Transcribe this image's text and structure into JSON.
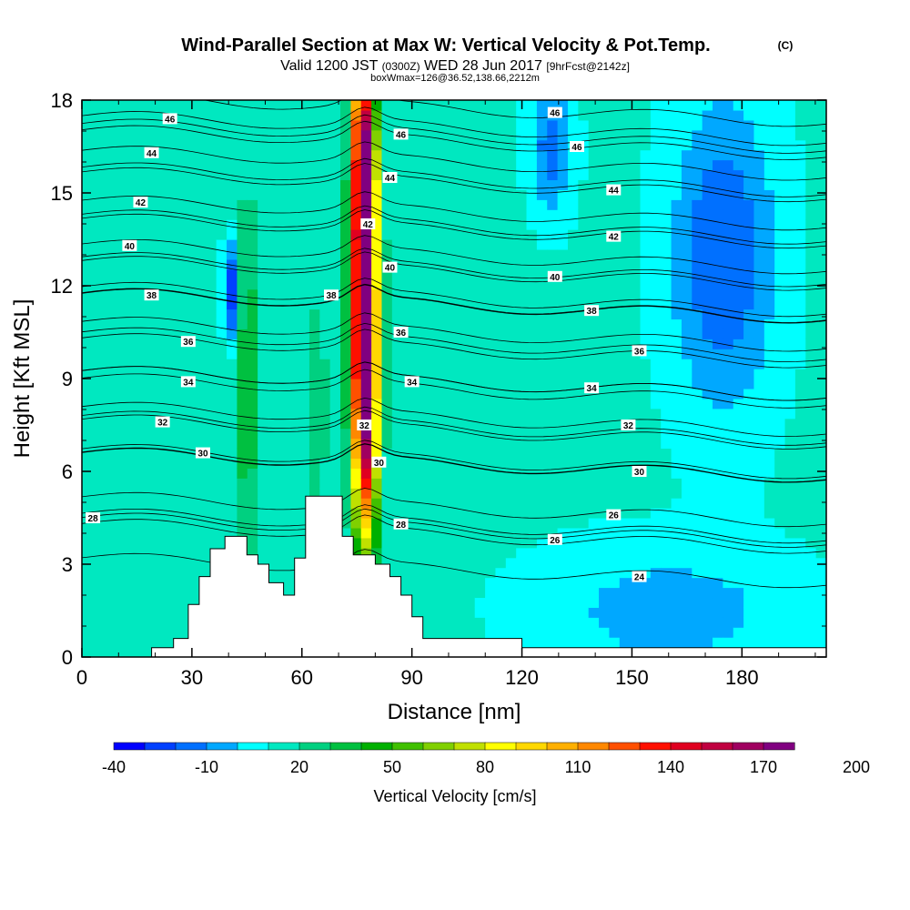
{
  "chart_data": {
    "type": "heatmap",
    "title": "Wind-Parallel Section at Max W: Vertical Velocity & Pot.Temp.",
    "title_mark": "(C)",
    "subtitle_prefix": "Valid 1200 JST",
    "subtitle_utc": "(0300Z)",
    "subtitle_date": "WED 28 Jun 2017",
    "subtitle_fcst": "[9hrFcst@2142z]",
    "subtitle2": "boxWmax=126@36.52,138.66,2212m",
    "xlabel": "Distance [nm]",
    "ylabel": "Height [Kft MSL]",
    "xlim": [
      0,
      203
    ],
    "ylim": [
      0,
      18
    ],
    "xticks": [
      "0",
      "30",
      "60",
      "90",
      "120",
      "150",
      "180"
    ],
    "yticks": [
      "0",
      "3",
      "6",
      "9",
      "12",
      "15",
      "18"
    ],
    "colorbar": {
      "label": "Vertical Velocity [cm/s]",
      "tick_labels": [
        "-40",
        "-10",
        "20",
        "50",
        "80",
        "110",
        "140",
        "170",
        "200"
      ],
      "colors": [
        "#0000ff",
        "#0040ff",
        "#0070ff",
        "#00a8ff",
        "#00ffff",
        "#00e8c0",
        "#00d080",
        "#00c040",
        "#00b000",
        "#40c000",
        "#80d000",
        "#c0e000",
        "#ffff00",
        "#ffd800",
        "#ffb000",
        "#ff8800",
        "#ff5000",
        "#ff1000",
        "#e00020",
        "#c00040",
        "#a00060",
        "#800080"
      ],
      "min": -40,
      "step": 10
    },
    "background_color": "#00ffff",
    "terrain": [
      [
        0,
        0
      ],
      [
        19,
        0
      ],
      [
        19,
        0.3
      ],
      [
        25,
        0.3
      ],
      [
        25,
        0.6
      ],
      [
        29,
        0.6
      ],
      [
        29,
        1.7
      ],
      [
        32,
        1.7
      ],
      [
        32,
        2.6
      ],
      [
        35,
        2.6
      ],
      [
        35,
        3.5
      ],
      [
        39,
        3.5
      ],
      [
        39,
        3.9
      ],
      [
        45,
        3.9
      ],
      [
        45,
        3.3
      ],
      [
        48,
        3.3
      ],
      [
        48,
        3.0
      ],
      [
        51,
        3.0
      ],
      [
        51,
        2.4
      ],
      [
        55,
        2.4
      ],
      [
        55,
        2.0
      ],
      [
        58,
        2.0
      ],
      [
        58,
        3.2
      ],
      [
        61,
        3.2
      ],
      [
        61,
        5.2
      ],
      [
        71,
        5.2
      ],
      [
        71,
        3.9
      ],
      [
        74,
        3.9
      ],
      [
        74,
        3.3
      ],
      [
        80,
        3.3
      ],
      [
        80,
        3.0
      ],
      [
        84,
        3.0
      ],
      [
        84,
        2.6
      ],
      [
        87,
        2.6
      ],
      [
        87,
        2.0
      ],
      [
        90,
        2.0
      ],
      [
        90,
        1.3
      ],
      [
        93,
        1.3
      ],
      [
        93,
        0.6
      ],
      [
        120,
        0.6
      ],
      [
        120,
        0.3
      ],
      [
        203,
        0.3
      ],
      [
        203,
        0
      ]
    ],
    "isentropes": [
      {
        "label": "46",
        "base": 17.4,
        "label_at": [
          24,
          17.4
        ]
      },
      {
        "label": "46",
        "base": 16.9,
        "label_at": [
          87,
          16.9
        ]
      },
      {
        "label": "46",
        "base": 17.6,
        "label_at": [
          129,
          17.6
        ]
      },
      {
        "label": "46",
        "base": 16.5,
        "label_at": [
          135,
          16.5
        ]
      },
      {
        "label": "44",
        "base": 16.3,
        "label_at": [
          19,
          16.3
        ]
      },
      {
        "label": "44",
        "base": 15.5,
        "label_at": [
          84,
          15.5
        ]
      },
      {
        "label": "44",
        "base": 15.1,
        "label_at": [
          145,
          15.1
        ]
      },
      {
        "label": "42",
        "base": 14.7,
        "label_at": [
          16,
          14.7
        ]
      },
      {
        "label": "42",
        "base": 14.0,
        "label_at": [
          78,
          14.0
        ]
      },
      {
        "label": "42",
        "base": 13.6,
        "label_at": [
          145,
          13.6
        ]
      },
      {
        "label": "40",
        "base": 13.3,
        "label_at": [
          13,
          13.3
        ]
      },
      {
        "label": "40",
        "base": 12.6,
        "label_at": [
          84,
          12.6
        ]
      },
      {
        "label": "40",
        "base": 12.3,
        "label_at": [
          129,
          12.3
        ]
      },
      {
        "label": "38",
        "base": 11.7,
        "label_at": [
          19,
          11.7
        ]
      },
      {
        "label": "38",
        "base": 11.7,
        "label_at": [
          68,
          11.7
        ]
      },
      {
        "label": "38",
        "base": 11.2,
        "label_at": [
          139,
          11.2
        ]
      },
      {
        "label": "36",
        "base": 10.2,
        "label_at": [
          29,
          10.2
        ]
      },
      {
        "label": "36",
        "base": 10.5,
        "label_at": [
          87,
          10.5
        ]
      },
      {
        "label": "36",
        "base": 9.9,
        "label_at": [
          152,
          9.9
        ]
      },
      {
        "label": "34",
        "base": 8.9,
        "label_at": [
          29,
          8.9
        ]
      },
      {
        "label": "34",
        "base": 8.9,
        "label_at": [
          90,
          8.9
        ]
      },
      {
        "label": "34",
        "base": 8.7,
        "label_at": [
          139,
          8.7
        ]
      },
      {
        "label": "32",
        "base": 7.6,
        "label_at": [
          22,
          7.6
        ]
      },
      {
        "label": "32",
        "base": 7.5,
        "label_at": [
          77,
          7.5
        ]
      },
      {
        "label": "32",
        "base": 7.5,
        "label_at": [
          149,
          7.5
        ]
      },
      {
        "label": "30",
        "base": 6.6,
        "label_at": [
          33,
          6.6
        ]
      },
      {
        "label": "30",
        "base": 6.3,
        "label_at": [
          81,
          6.3
        ]
      },
      {
        "label": "30",
        "base": 6.0,
        "label_at": [
          152,
          6.0
        ]
      },
      {
        "label": "28",
        "base": 4.5,
        "label_at": [
          3,
          4.5
        ]
      },
      {
        "label": "28",
        "base": 4.3,
        "label_at": [
          87,
          4.3
        ]
      },
      {
        "label": "26",
        "base": 4.6,
        "label_at": [
          145,
          4.6
        ]
      },
      {
        "label": "26",
        "base": 3.8,
        "label_at": [
          129,
          3.8
        ]
      },
      {
        "label": "24",
        "base": 2.6,
        "label_at": [
          152,
          2.6
        ]
      }
    ],
    "velocity_features": [
      {
        "name": "main-updraft",
        "x": 77,
        "y": 11,
        "sx": 2.5,
        "sy": 4.5,
        "value": 200
      },
      {
        "name": "updraft-upper",
        "x": 77,
        "y": 15.5,
        "sx": 2.0,
        "sy": 1.8,
        "value": 90
      },
      {
        "name": "updraft-top",
        "x": 76,
        "y": 17.5,
        "sx": 2.0,
        "sy": 1.0,
        "value": 60
      },
      {
        "name": "updraft-lower",
        "x": 78,
        "y": 6.5,
        "sx": 2.2,
        "sy": 2.0,
        "value": 50
      },
      {
        "name": "west-plume",
        "x": 45,
        "y": 9,
        "sx": 2.5,
        "sy": 4,
        "value": 40
      },
      {
        "name": "west-plume-low",
        "x": 36,
        "y": 5,
        "sx": 2,
        "sy": 2,
        "value": 20
      },
      {
        "name": "mid-plume",
        "x": 64,
        "y": 8,
        "sx": 2,
        "sy": 2.5,
        "value": 30
      },
      {
        "name": "downdraft-west",
        "x": 41,
        "y": 11.8,
        "sx": 1.5,
        "sy": 1.2,
        "value": -30
      },
      {
        "name": "downdraft-east",
        "x": 175,
        "y": 13,
        "sx": 10,
        "sy": 3.5,
        "value": -20
      },
      {
        "name": "downdraft-ne",
        "x": 128,
        "y": 16.5,
        "sx": 4,
        "sy": 1.5,
        "value": -15
      },
      {
        "name": "low-blue",
        "x": 160,
        "y": 1.5,
        "sx": 25,
        "sy": 1.5,
        "value": -5
      }
    ]
  }
}
